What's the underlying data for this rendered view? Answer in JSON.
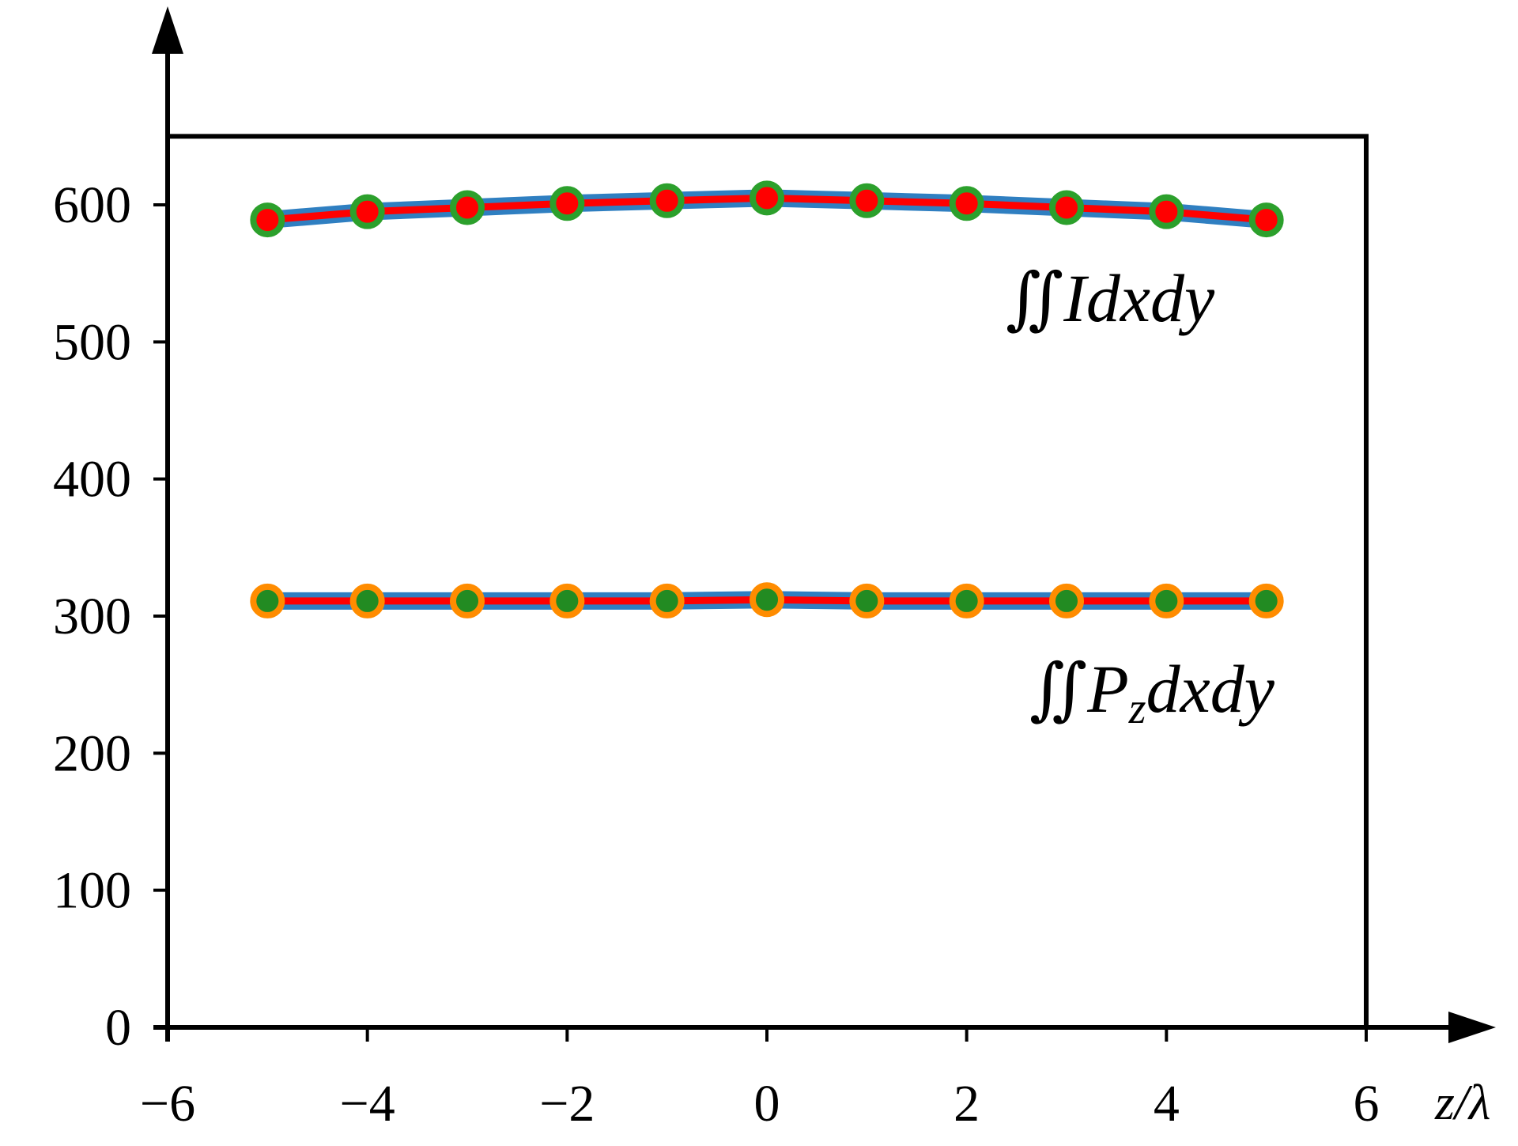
{
  "chart_data": {
    "type": "line",
    "title": "",
    "xlabel": "z/λ",
    "ylabel": "",
    "xlim": [
      -6,
      6
    ],
    "ylim": [
      0,
      650
    ],
    "x_ticks": [
      -6,
      -4,
      -2,
      0,
      2,
      4,
      6
    ],
    "x_tick_labels": [
      "−6",
      "−4",
      "−2",
      "0",
      "2",
      "4",
      "6"
    ],
    "y_ticks": [
      0,
      100,
      200,
      300,
      400,
      500,
      600
    ],
    "y_tick_labels": [
      "0",
      "100",
      "200",
      "300",
      "400",
      "500",
      "600"
    ],
    "grid": false,
    "legend": "none",
    "series": [
      {
        "label_parts": [
          "∬",
          "I",
          "dxdy"
        ],
        "x": [
          -5,
          -4,
          -3,
          -2,
          -1,
          0,
          1,
          2,
          3,
          4,
          5
        ],
        "y": [
          589,
          595,
          598,
          601,
          603,
          605,
          603,
          601,
          598,
          595,
          589
        ],
        "colors": {
          "outer_line": "#2f7fc1",
          "inner_line": "#ff0000",
          "marker_fill": "#ff0000",
          "marker_edge": "#2ca02c"
        }
      },
      {
        "label_parts": [
          "∬",
          "P",
          "z",
          "dxdy"
        ],
        "x": [
          -5,
          -4,
          -3,
          -2,
          -1,
          0,
          1,
          2,
          3,
          4,
          5
        ],
        "y": [
          311,
          311,
          311,
          311,
          311,
          312,
          311,
          311,
          311,
          311,
          311
        ],
        "colors": {
          "outer_line": "#2f7fc1",
          "inner_line": "#ff0000",
          "marker_fill": "#228b22",
          "marker_edge": "#ff8c00"
        }
      }
    ]
  }
}
